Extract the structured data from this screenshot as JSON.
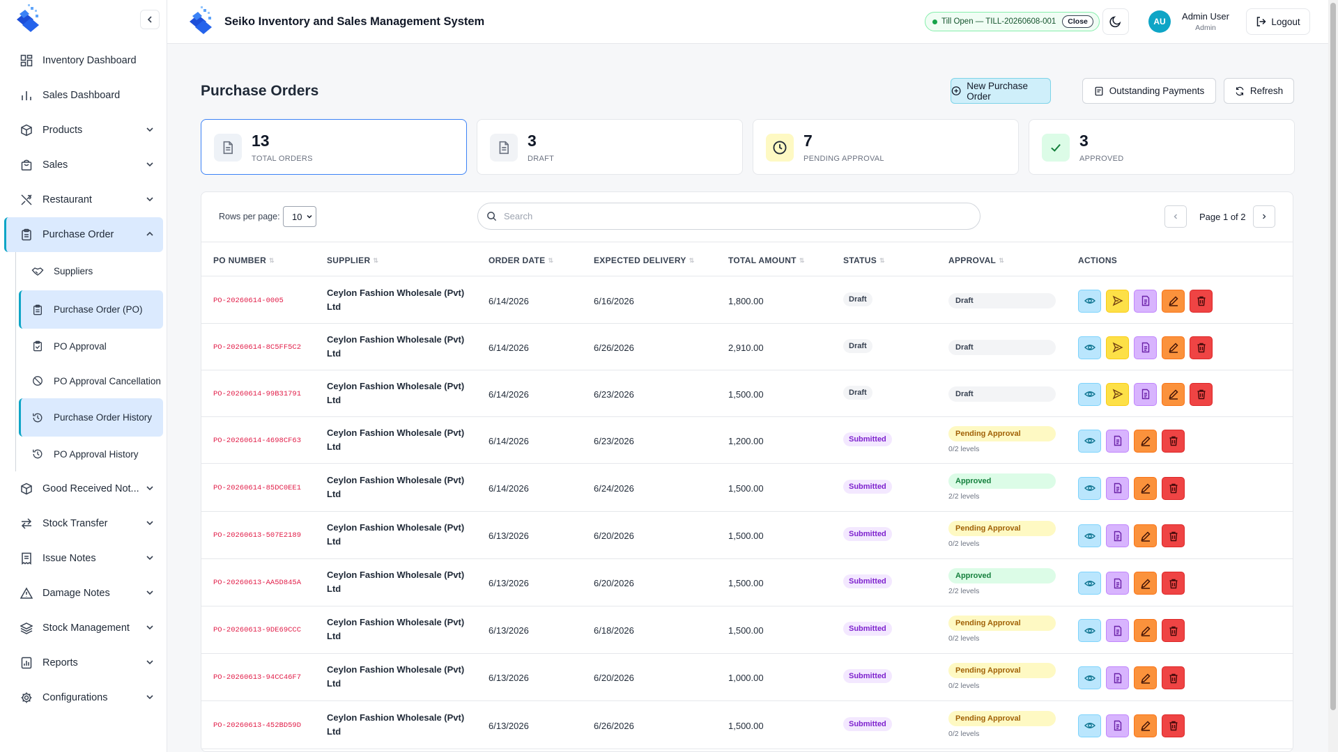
{
  "app": {
    "title": "Seiko Inventory and Sales Management System"
  },
  "header": {
    "till_label": "Till Open — TILL-20260608-001",
    "till_close": "Close",
    "user_initials": "AU",
    "user_name": "Admin User",
    "user_role": "Admin",
    "logout_label": "Logout"
  },
  "sidebar": {
    "items": [
      {
        "label": "Inventory Dashboard",
        "icon": "grid-icon"
      },
      {
        "label": "Sales Dashboard",
        "icon": "bar-chart-icon"
      },
      {
        "label": "Products",
        "icon": "box-icon"
      },
      {
        "label": "Sales",
        "icon": "shopping-bag-icon"
      },
      {
        "label": "Restaurant",
        "icon": "utensils-icon"
      },
      {
        "label": "Purchase Order",
        "icon": "clipboard-icon"
      },
      {
        "label": "Good Received Not...",
        "icon": "package-check-icon"
      },
      {
        "label": "Stock Transfer",
        "icon": "arrows-icon"
      },
      {
        "label": "Issue Notes",
        "icon": "receipt-icon"
      },
      {
        "label": "Damage Notes",
        "icon": "alert-triangle-icon"
      },
      {
        "label": "Stock Management",
        "icon": "layers-icon"
      },
      {
        "label": "Reports",
        "icon": "report-icon"
      },
      {
        "label": "Configurations",
        "icon": "settings-icon"
      }
    ],
    "sub_items": [
      {
        "label": "Suppliers",
        "icon": "handshake-icon"
      },
      {
        "label": "Purchase Order (PO)",
        "icon": "clipboard-icon"
      },
      {
        "label": "PO Approval",
        "icon": "clipboard-check-icon"
      },
      {
        "label": "PO Approval Cancellation",
        "icon": "ban-icon"
      },
      {
        "label": "Purchase Order History",
        "icon": "history-icon"
      },
      {
        "label": "PO Approval History",
        "icon": "history-icon"
      }
    ]
  },
  "page": {
    "title": "Purchase Orders",
    "new_po_label": "New Purchase Order",
    "outstanding_label": "Outstanding Payments",
    "refresh_label": "Refresh"
  },
  "stats": [
    {
      "value": "13",
      "label": "TOTAL ORDERS",
      "color": "#6b7280"
    },
    {
      "value": "3",
      "label": "DRAFT",
      "color": "#6b7280"
    },
    {
      "value": "7",
      "label": "PENDING APPROVAL",
      "color": "#a16207"
    },
    {
      "value": "3",
      "label": "APPROVED",
      "color": "#16a34a"
    }
  ],
  "table": {
    "rows_per_page_label": "Rows per page:",
    "rows_per_page_value": "10",
    "search_placeholder": "Search",
    "page_info": "Page 1 of 2",
    "columns": [
      "PO NUMBER",
      "SUPPLIER",
      "ORDER DATE",
      "EXPECTED DELIVERY",
      "TOTAL AMOUNT",
      "STATUS",
      "APPROVAL",
      "ACTIONS"
    ],
    "rows": [
      {
        "po": "PO-20260614-0005",
        "supplier": "Ceylon Fashion Wholesale (Pvt) Ltd",
        "order_date": "6/14/2026",
        "delivery": "6/16/2026",
        "amount": "1,800.00",
        "status": "Draft",
        "approval": "Draft",
        "levels": ""
      },
      {
        "po": "PO-20260614-8C5FF5C2",
        "supplier": "Ceylon Fashion Wholesale (Pvt) Ltd",
        "order_date": "6/14/2026",
        "delivery": "6/26/2026",
        "amount": "2,910.00",
        "status": "Draft",
        "approval": "Draft",
        "levels": ""
      },
      {
        "po": "PO-20260614-99B31791",
        "supplier": "Ceylon Fashion Wholesale (Pvt) Ltd",
        "order_date": "6/14/2026",
        "delivery": "6/23/2026",
        "amount": "1,500.00",
        "status": "Draft",
        "approval": "Draft",
        "levels": ""
      },
      {
        "po": "PO-20260614-4698CF63",
        "supplier": "Ceylon Fashion Wholesale (Pvt) Ltd",
        "order_date": "6/14/2026",
        "delivery": "6/23/2026",
        "amount": "1,200.00",
        "status": "Submitted",
        "approval": "Pending Approval",
        "levels": "0/2 levels"
      },
      {
        "po": "PO-20260614-85DC0EE1",
        "supplier": "Ceylon Fashion Wholesale (Pvt) Ltd",
        "order_date": "6/14/2026",
        "delivery": "6/24/2026",
        "amount": "1,500.00",
        "status": "Submitted",
        "approval": "Approved",
        "levels": "2/2 levels"
      },
      {
        "po": "PO-20260613-507E2189",
        "supplier": "Ceylon Fashion Wholesale (Pvt) Ltd",
        "order_date": "6/13/2026",
        "delivery": "6/20/2026",
        "amount": "1,500.00",
        "status": "Submitted",
        "approval": "Pending Approval",
        "levels": "0/2 levels"
      },
      {
        "po": "PO-20260613-AA5D845A",
        "supplier": "Ceylon Fashion Wholesale (Pvt) Ltd",
        "order_date": "6/13/2026",
        "delivery": "6/20/2026",
        "amount": "1,500.00",
        "status": "Submitted",
        "approval": "Approved",
        "levels": "2/2 levels"
      },
      {
        "po": "PO-20260613-9DE69CCC",
        "supplier": "Ceylon Fashion Wholesale (Pvt) Ltd",
        "order_date": "6/13/2026",
        "delivery": "6/18/2026",
        "amount": "1,500.00",
        "status": "Submitted",
        "approval": "Pending Approval",
        "levels": "0/2 levels"
      },
      {
        "po": "PO-20260613-94CC46F7",
        "supplier": "Ceylon Fashion Wholesale (Pvt) Ltd",
        "order_date": "6/13/2026",
        "delivery": "6/20/2026",
        "amount": "1,000.00",
        "status": "Submitted",
        "approval": "Pending Approval",
        "levels": "0/2 levels"
      },
      {
        "po": "PO-20260613-452BD59D",
        "supplier": "Ceylon Fashion Wholesale (Pvt) Ltd",
        "order_date": "6/13/2026",
        "delivery": "6/26/2026",
        "amount": "1,500.00",
        "status": "Submitted",
        "approval": "Pending Approval",
        "levels": "0/2 levels"
      }
    ]
  }
}
